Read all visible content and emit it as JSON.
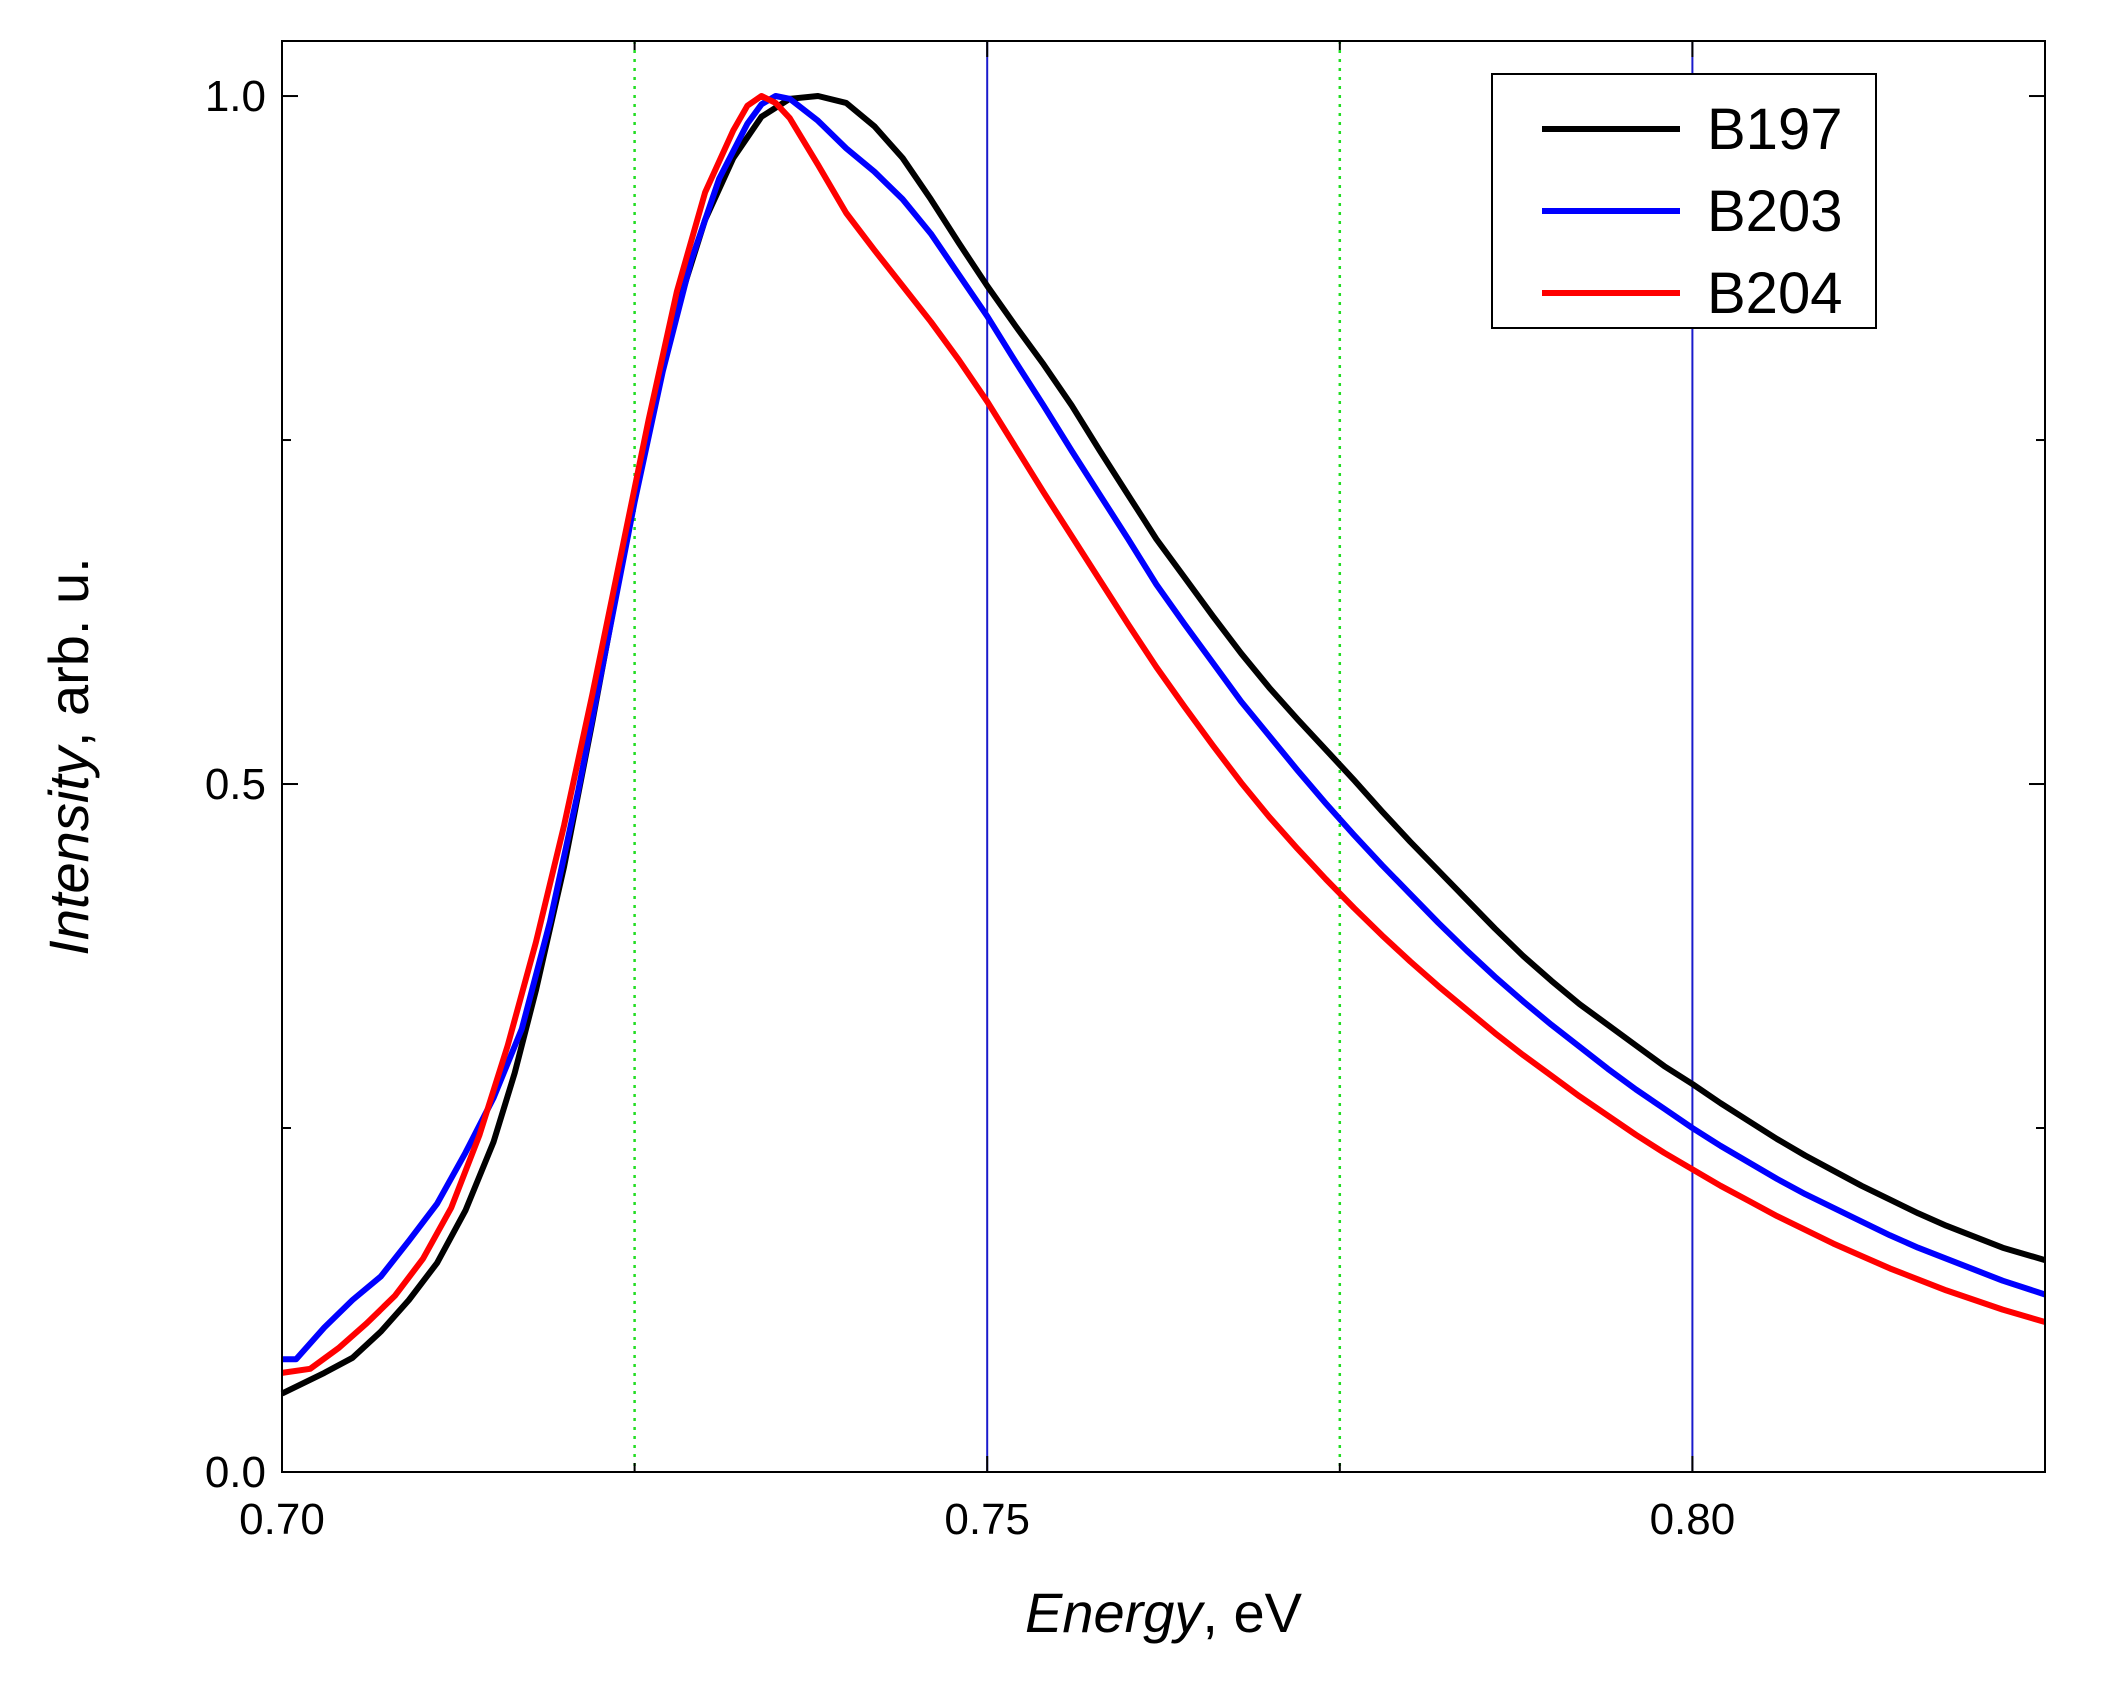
{
  "chart_data": {
    "type": "line",
    "xlabel": {
      "italic": "Energy",
      "rest": ", eV"
    },
    "ylabel": {
      "italic": "Intensity",
      "rest": ", arb. u."
    },
    "xlim": [
      0.7,
      0.825
    ],
    "ylim": [
      0.0,
      1.04
    ],
    "x_ticks": [
      {
        "value": 0.7,
        "label": "0.70"
      },
      {
        "value": 0.75,
        "label": "0.75"
      },
      {
        "value": 0.8,
        "label": "0.80"
      }
    ],
    "x_minor_ticks": [
      0.725,
      0.775
    ],
    "y_ticks": [
      {
        "value": 0.0,
        "label": "0.0"
      },
      {
        "value": 0.5,
        "label": "0.5"
      },
      {
        "value": 1.0,
        "label": "1.0"
      }
    ],
    "y_minor_ticks": [
      0.25,
      0.75
    ],
    "reference_lines": [
      {
        "x": 0.725,
        "style": "dotted",
        "color": "#22dd22"
      },
      {
        "x": 0.75,
        "style": "solid",
        "color": "#1a1acc"
      },
      {
        "x": 0.775,
        "style": "dotted",
        "color": "#22dd22"
      },
      {
        "x": 0.8,
        "style": "solid",
        "color": "#1a1acc"
      }
    ],
    "legend_position": "top-right",
    "series": [
      {
        "name": "B197",
        "color": "#000000",
        "points": [
          [
            0.7,
            0.057
          ],
          [
            0.703,
            0.072
          ],
          [
            0.705,
            0.083
          ],
          [
            0.707,
            0.102
          ],
          [
            0.709,
            0.125
          ],
          [
            0.711,
            0.152
          ],
          [
            0.713,
            0.19
          ],
          [
            0.715,
            0.24
          ],
          [
            0.7165,
            0.29
          ],
          [
            0.718,
            0.35
          ],
          [
            0.72,
            0.44
          ],
          [
            0.722,
            0.545
          ],
          [
            0.724,
            0.655
          ],
          [
            0.726,
            0.76
          ],
          [
            0.728,
            0.845
          ],
          [
            0.73,
            0.91
          ],
          [
            0.732,
            0.955
          ],
          [
            0.734,
            0.985
          ],
          [
            0.736,
            0.998
          ],
          [
            0.738,
            1.0
          ],
          [
            0.74,
            0.995
          ],
          [
            0.742,
            0.978
          ],
          [
            0.744,
            0.955
          ],
          [
            0.746,
            0.925
          ],
          [
            0.748,
            0.893
          ],
          [
            0.75,
            0.862
          ],
          [
            0.752,
            0.833
          ],
          [
            0.754,
            0.805
          ],
          [
            0.756,
            0.775
          ],
          [
            0.758,
            0.742
          ],
          [
            0.76,
            0.71
          ],
          [
            0.762,
            0.678
          ],
          [
            0.764,
            0.65
          ],
          [
            0.766,
            0.622
          ],
          [
            0.768,
            0.595
          ],
          [
            0.77,
            0.57
          ],
          [
            0.772,
            0.547
          ],
          [
            0.774,
            0.525
          ],
          [
            0.776,
            0.503
          ],
          [
            0.778,
            0.48
          ],
          [
            0.78,
            0.458
          ],
          [
            0.782,
            0.437
          ],
          [
            0.784,
            0.416
          ],
          [
            0.786,
            0.395
          ],
          [
            0.788,
            0.375
          ],
          [
            0.79,
            0.357
          ],
          [
            0.792,
            0.34
          ],
          [
            0.794,
            0.325
          ],
          [
            0.796,
            0.31
          ],
          [
            0.798,
            0.295
          ],
          [
            0.8,
            0.282
          ],
          [
            0.802,
            0.268
          ],
          [
            0.804,
            0.255
          ],
          [
            0.806,
            0.242
          ],
          [
            0.808,
            0.23
          ],
          [
            0.81,
            0.219
          ],
          [
            0.812,
            0.208
          ],
          [
            0.814,
            0.198
          ],
          [
            0.816,
            0.188
          ],
          [
            0.818,
            0.179
          ],
          [
            0.82,
            0.171
          ],
          [
            0.822,
            0.163
          ],
          [
            0.825,
            0.154
          ]
        ]
      },
      {
        "name": "B203",
        "color": "#0000ff",
        "points": [
          [
            0.7,
            0.082
          ],
          [
            0.701,
            0.082
          ],
          [
            0.703,
            0.105
          ],
          [
            0.705,
            0.125
          ],
          [
            0.707,
            0.142
          ],
          [
            0.709,
            0.168
          ],
          [
            0.711,
            0.195
          ],
          [
            0.713,
            0.232
          ],
          [
            0.715,
            0.272
          ],
          [
            0.717,
            0.322
          ],
          [
            0.719,
            0.4
          ],
          [
            0.721,
            0.495
          ],
          [
            0.723,
            0.6
          ],
          [
            0.725,
            0.705
          ],
          [
            0.727,
            0.8
          ],
          [
            0.729,
            0.88
          ],
          [
            0.731,
            0.94
          ],
          [
            0.733,
            0.98
          ],
          [
            0.734,
            0.994
          ],
          [
            0.735,
            1.0
          ],
          [
            0.736,
            0.998
          ],
          [
            0.738,
            0.982
          ],
          [
            0.74,
            0.962
          ],
          [
            0.742,
            0.945
          ],
          [
            0.744,
            0.925
          ],
          [
            0.746,
            0.9
          ],
          [
            0.748,
            0.87
          ],
          [
            0.75,
            0.84
          ],
          [
            0.752,
            0.807
          ],
          [
            0.754,
            0.775
          ],
          [
            0.756,
            0.742
          ],
          [
            0.758,
            0.71
          ],
          [
            0.76,
            0.678
          ],
          [
            0.762,
            0.645
          ],
          [
            0.764,
            0.616
          ],
          [
            0.766,
            0.588
          ],
          [
            0.768,
            0.56
          ],
          [
            0.77,
            0.535
          ],
          [
            0.772,
            0.51
          ],
          [
            0.774,
            0.486
          ],
          [
            0.776,
            0.463
          ],
          [
            0.778,
            0.441
          ],
          [
            0.78,
            0.42
          ],
          [
            0.782,
            0.399
          ],
          [
            0.784,
            0.379
          ],
          [
            0.786,
            0.36
          ],
          [
            0.788,
            0.342
          ],
          [
            0.79,
            0.325
          ],
          [
            0.792,
            0.309
          ],
          [
            0.794,
            0.293
          ],
          [
            0.796,
            0.278
          ],
          [
            0.798,
            0.264
          ],
          [
            0.8,
            0.25
          ],
          [
            0.802,
            0.237
          ],
          [
            0.804,
            0.225
          ],
          [
            0.806,
            0.213
          ],
          [
            0.808,
            0.202
          ],
          [
            0.81,
            0.192
          ],
          [
            0.812,
            0.182
          ],
          [
            0.814,
            0.172
          ],
          [
            0.816,
            0.163
          ],
          [
            0.818,
            0.155
          ],
          [
            0.82,
            0.147
          ],
          [
            0.822,
            0.139
          ],
          [
            0.825,
            0.129
          ]
        ]
      },
      {
        "name": "B204",
        "color": "#ff0000",
        "points": [
          [
            0.7,
            0.072
          ],
          [
            0.702,
            0.075
          ],
          [
            0.704,
            0.09
          ],
          [
            0.706,
            0.108
          ],
          [
            0.708,
            0.128
          ],
          [
            0.71,
            0.155
          ],
          [
            0.712,
            0.192
          ],
          [
            0.714,
            0.245
          ],
          [
            0.716,
            0.31
          ],
          [
            0.718,
            0.385
          ],
          [
            0.72,
            0.47
          ],
          [
            0.722,
            0.565
          ],
          [
            0.724,
            0.665
          ],
          [
            0.726,
            0.765
          ],
          [
            0.728,
            0.858
          ],
          [
            0.73,
            0.93
          ],
          [
            0.732,
            0.975
          ],
          [
            0.733,
            0.993
          ],
          [
            0.734,
            1.0
          ],
          [
            0.735,
            0.995
          ],
          [
            0.736,
            0.984
          ],
          [
            0.738,
            0.95
          ],
          [
            0.74,
            0.915
          ],
          [
            0.742,
            0.888
          ],
          [
            0.744,
            0.862
          ],
          [
            0.746,
            0.836
          ],
          [
            0.748,
            0.808
          ],
          [
            0.75,
            0.778
          ],
          [
            0.752,
            0.745
          ],
          [
            0.754,
            0.712
          ],
          [
            0.756,
            0.68
          ],
          [
            0.758,
            0.648
          ],
          [
            0.76,
            0.616
          ],
          [
            0.762,
            0.585
          ],
          [
            0.764,
            0.556
          ],
          [
            0.766,
            0.528
          ],
          [
            0.768,
            0.501
          ],
          [
            0.77,
            0.476
          ],
          [
            0.772,
            0.453
          ],
          [
            0.774,
            0.431
          ],
          [
            0.776,
            0.41
          ],
          [
            0.778,
            0.39
          ],
          [
            0.78,
            0.371
          ],
          [
            0.782,
            0.353
          ],
          [
            0.784,
            0.336
          ],
          [
            0.786,
            0.319
          ],
          [
            0.788,
            0.303
          ],
          [
            0.79,
            0.288
          ],
          [
            0.792,
            0.273
          ],
          [
            0.794,
            0.259
          ],
          [
            0.796,
            0.245
          ],
          [
            0.798,
            0.232
          ],
          [
            0.8,
            0.22
          ],
          [
            0.802,
            0.208
          ],
          [
            0.804,
            0.197
          ],
          [
            0.806,
            0.186
          ],
          [
            0.808,
            0.176
          ],
          [
            0.81,
            0.166
          ],
          [
            0.812,
            0.157
          ],
          [
            0.814,
            0.148
          ],
          [
            0.816,
            0.14
          ],
          [
            0.818,
            0.132
          ],
          [
            0.82,
            0.125
          ],
          [
            0.822,
            0.118
          ],
          [
            0.825,
            0.109
          ]
        ]
      }
    ]
  }
}
